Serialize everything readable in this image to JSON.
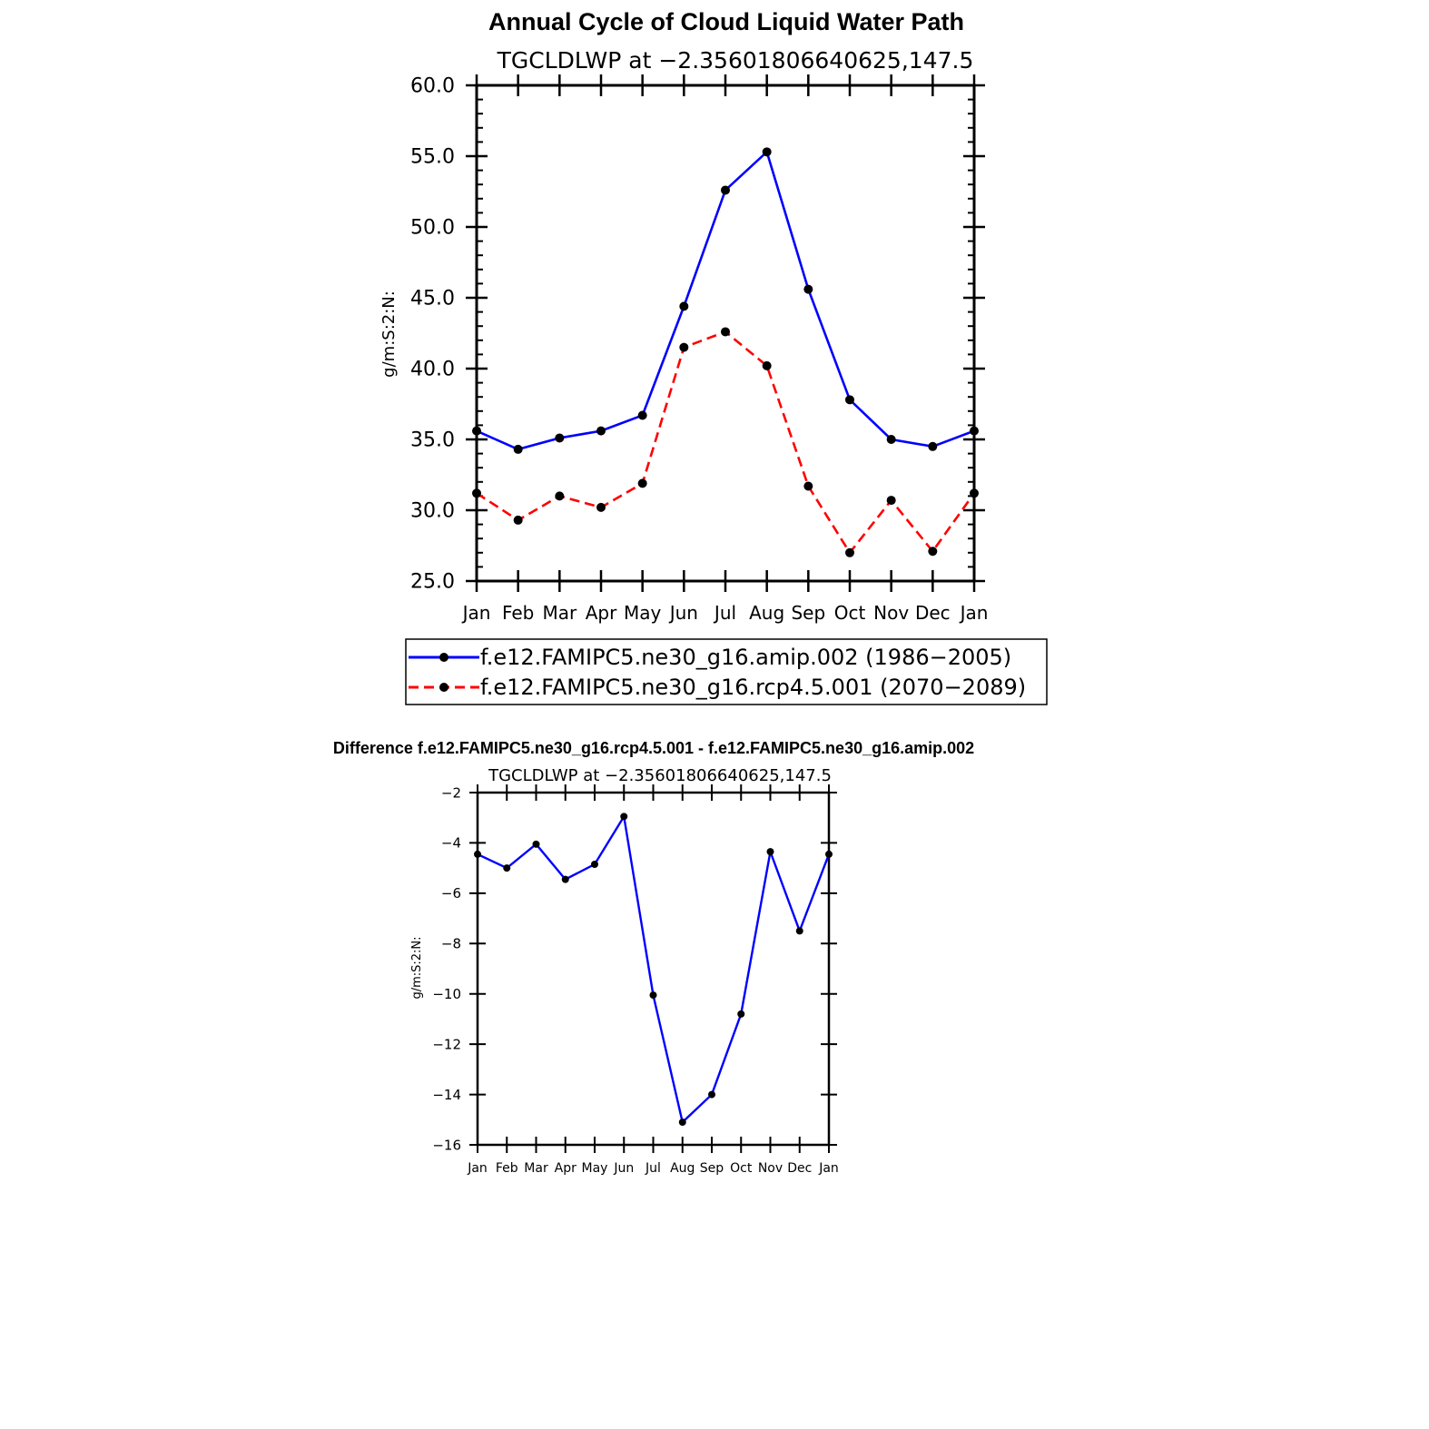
{
  "main_chart": {
    "title": "Annual Cycle of Cloud Liquid Water Path",
    "subtitle": "TGCLDLWP at −2.35601806640625,147.5",
    "ylabel": "g/m:S:2:N:",
    "chart_data": {
      "type": "line",
      "categories": [
        "Jan",
        "Feb",
        "Mar",
        "Apr",
        "May",
        "Jun",
        "Jul",
        "Aug",
        "Sep",
        "Oct",
        "Nov",
        "Dec",
        "Jan"
      ],
      "ylim": [
        25.0,
        60.0
      ],
      "yticks": [
        "25.0",
        "30.0",
        "35.0",
        "40.0",
        "45.0",
        "50.0",
        "55.0",
        "60.0"
      ],
      "series": [
        {
          "name": "f.e12.FAMIPC5.ne30_g16.amip.002 (1986−2005)",
          "color": "#0000ff",
          "dashed": false,
          "values": [
            35.6,
            34.3,
            35.1,
            35.6,
            36.7,
            44.4,
            52.6,
            55.3,
            45.6,
            37.8,
            35.0,
            34.5,
            35.6
          ]
        },
        {
          "name": "f.e12.FAMIPC5.ne30_g16.rcp4.5.001 (2070−2089)",
          "color": "#ff0000",
          "dashed": true,
          "values": [
            31.2,
            29.3,
            31.0,
            30.2,
            31.9,
            41.5,
            42.6,
            40.2,
            31.7,
            27.0,
            30.7,
            27.1,
            31.2
          ]
        }
      ],
      "grid": false,
      "legend": "below"
    }
  },
  "diff_chart": {
    "title": "Difference f.e12.FAMIPC5.ne30_g16.rcp4.5.001 - f.e12.FAMIPC5.ne30_g16.amip.002",
    "subtitle": "TGCLDLWP at −2.35601806640625,147.5",
    "ylabel": "g/m:S:2:N:",
    "chart_data": {
      "type": "line",
      "categories": [
        "Jan",
        "Feb",
        "Mar",
        "Apr",
        "May",
        "Jun",
        "Jul",
        "Aug",
        "Sep",
        "Oct",
        "Nov",
        "Dec",
        "Jan"
      ],
      "ylim": [
        -16,
        -2
      ],
      "yticks": [
        "−16",
        "−14",
        "−12",
        "−10",
        "−8",
        "−6",
        "−4",
        "−2"
      ],
      "series": [
        {
          "color": "#0000ff",
          "values": [
            -4.45,
            -5.0,
            -4.05,
            -5.45,
            -4.85,
            -2.95,
            -10.05,
            -15.1,
            -14.0,
            -10.8,
            -4.35,
            -7.5,
            -4.45
          ]
        }
      ],
      "grid": false
    }
  }
}
